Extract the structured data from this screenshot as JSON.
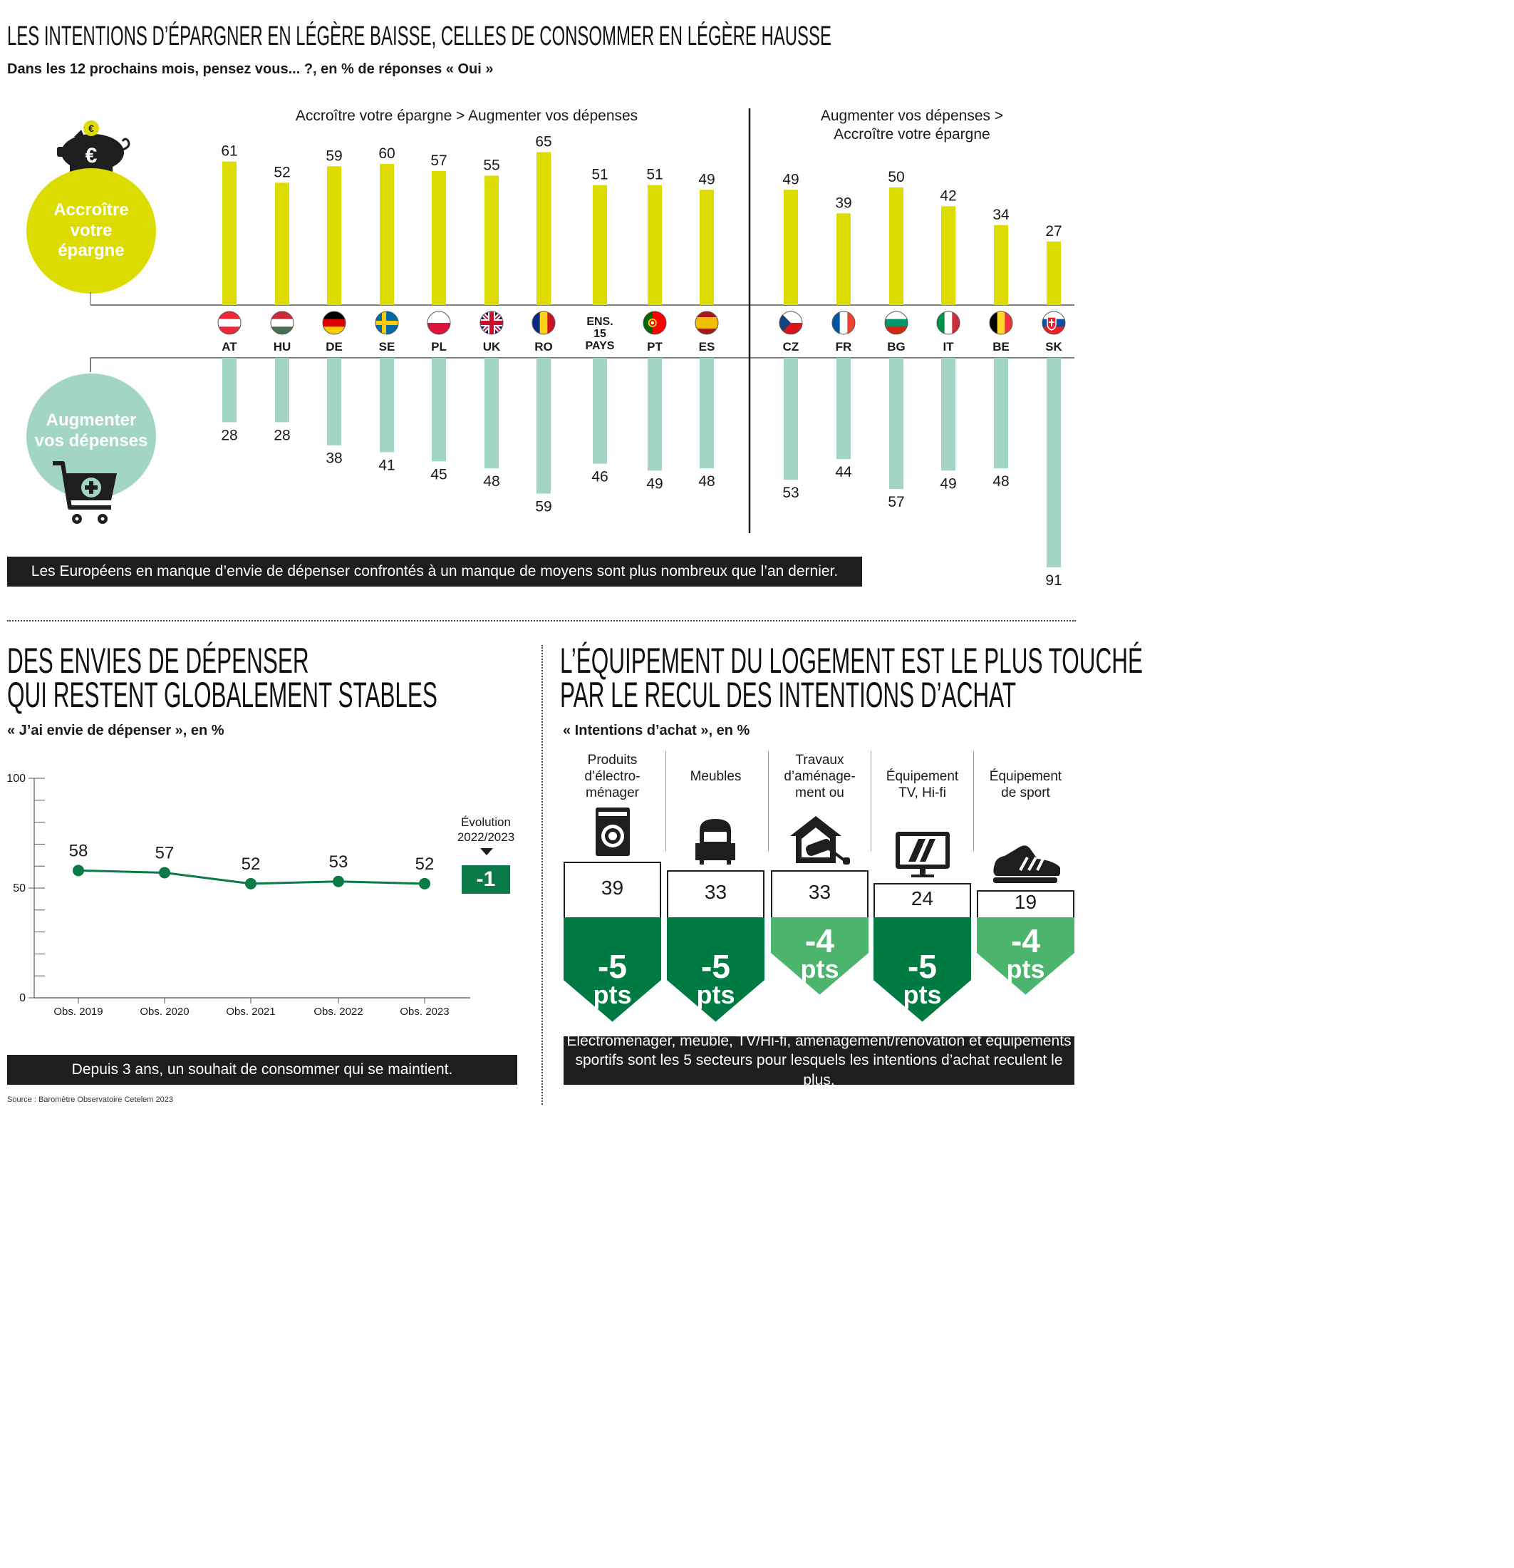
{
  "top": {
    "title": "LES INTENTIONS D’ÉPARGNER EN LÉGÈRE BAISSE, CELLES DE CONSOMMER EN LÉGÈRE HAUSSE",
    "subtitle": "Dans les 12 prochains mois, pensez vous... ?, en % de réponses « Oui »",
    "savings_circle_label": "Accroître votre épargne",
    "spending_circle_label": "Augmenter vos dépenses",
    "euro_symbol": "€",
    "group_left_header": "Accroître votre épargne > Augmenter vos dépenses",
    "group_right_header_line1": "Augmenter vos dépenses >",
    "group_right_header_line2": "Accroître votre épargne",
    "banner": "Les Européens en manque d’envie de dépenser confrontés à un manque de moyens sont plus nombreux que l’an dernier.",
    "colors": {
      "savings": "#dcdc00",
      "spending": "#a3d5c4",
      "dark": "#1e1e1e"
    }
  },
  "line": {
    "title_line1": "DES ENVIES DE DÉPENSER",
    "title_line2": "QUI RESTENT GLOBALEMENT STABLES",
    "subtitle": "« J’ai envie de dépenser », en %",
    "evolution_label_line1": "Évolution",
    "evolution_label_line2": "2022/2023",
    "evolution_value": "-1",
    "banner": "Depuis 3 ans, un souhait de consommer qui se maintient.",
    "color": "#0a7a46"
  },
  "equip": {
    "title_line1": "L’ÉQUIPEMENT DU LOGEMENT EST LE PLUS TOUCHÉ",
    "title_line2": "PAR LE RECUL DES INTENTIONS D’ACHAT",
    "subtitle": "« Intentions d’achat », en %",
    "banner_line1": "Électroménager, meuble, TV/Hi-fi, aménagement/rénovation et équipements",
    "banner_line2": "sportifs sont les 5 secteurs pour lesquels les intentions d’achat reculent le plus.",
    "colors": {
      "dark_green": "#007a43",
      "light_green": "#4cb46c"
    }
  },
  "source": "Source : Baromètre Observatoire Cetelem 2023",
  "chart_data": [
    {
      "type": "bar",
      "title": "LES INTENTIONS D’ÉPARGNER EN LÉGÈRE BAISSE, CELLES DE CONSOMMER EN LÉGÈRE HAUSSE",
      "categories": [
        "AT",
        "HU",
        "DE",
        "SE",
        "PL",
        "UK",
        "RO",
        "ENS. 15 PAYS",
        "PT",
        "ES",
        "CZ",
        "FR",
        "BG",
        "IT",
        "BE",
        "SK"
      ],
      "category_lines": [
        [
          "AT"
        ],
        [
          "HU"
        ],
        [
          "DE"
        ],
        [
          "SE"
        ],
        [
          "PL"
        ],
        [
          "UK"
        ],
        [
          "RO"
        ],
        [
          "ENS.",
          "15",
          "PAYS"
        ],
        [
          "PT"
        ],
        [
          "ES"
        ],
        [
          "CZ"
        ],
        [
          "FR"
        ],
        [
          "BG"
        ],
        [
          "IT"
        ],
        [
          "BE"
        ],
        [
          "SK"
        ]
      ],
      "series": [
        {
          "name": "Accroître votre épargne",
          "values": [
            61,
            52,
            59,
            60,
            57,
            55,
            65,
            51,
            51,
            49,
            49,
            39,
            50,
            42,
            34,
            27
          ]
        },
        {
          "name": "Augmenter vos dépenses",
          "values": [
            28,
            28,
            38,
            41,
            45,
            48,
            59,
            46,
            49,
            48,
            53,
            44,
            57,
            49,
            48,
            91
          ]
        }
      ],
      "groups": [
        {
          "label": "Accroître votre épargne > Augmenter vos dépenses",
          "from": 0,
          "to": 9
        },
        {
          "label": "Augmenter vos dépenses > Accroître votre épargne",
          "from": 10,
          "to": 15
        }
      ],
      "ylim": [
        0,
        100
      ]
    },
    {
      "type": "line",
      "title": "DES ENVIES DE DÉPENSER QUI RESTENT GLOBALEMENT STABLES",
      "x": [
        "Obs. 2019",
        "Obs. 2020",
        "Obs. 2021",
        "Obs. 2022",
        "Obs. 2023"
      ],
      "values": [
        58,
        57,
        52,
        53,
        52
      ],
      "ylim": [
        0,
        100
      ],
      "yticks": [
        0,
        50,
        100
      ],
      "evolution": "-1"
    },
    {
      "type": "bar",
      "title": "L’ÉQUIPEMENT DU LOGEMENT EST LE PLUS TOUCHÉ PAR LE RECUL DES INTENTIONS D’ACHAT",
      "categories": [
        "Produits d’électro- ménager",
        "Meubles",
        "Travaux d’aménage- ment ou",
        "Équipement TV, Hi-fi",
        "Équipement de sport"
      ],
      "category_lines": [
        [
          "Produits",
          "d’électro-",
          "ménager"
        ],
        [
          "Meubles"
        ],
        [
          "Travaux",
          "d’aménage-",
          "ment ou"
        ],
        [
          "Équipement",
          "TV, Hi-fi"
        ],
        [
          "Équipement",
          "de sport"
        ]
      ],
      "values": [
        39,
        33,
        33,
        24,
        19
      ],
      "changes": [
        -5,
        -5,
        -4,
        -5,
        -4
      ],
      "change_unit": "pts",
      "icons": [
        "washing-machine-icon",
        "armchair-icon",
        "house-paint-roller-icon",
        "tv-icon",
        "sneaker-icon"
      ]
    }
  ]
}
